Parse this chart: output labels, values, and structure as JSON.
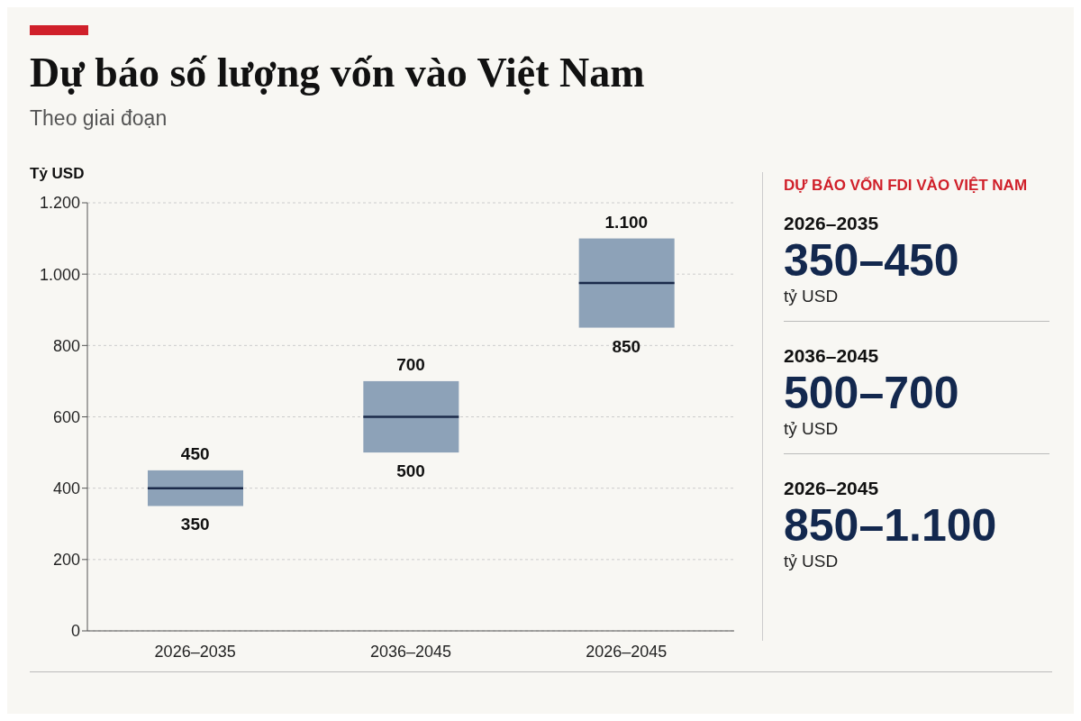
{
  "chart_data": [
    {
      "type": "box",
      "title": "Dự báo số lượng vốn vào Việt Nam",
      "subtitle": "Theo giai đoạn",
      "ylabel": "Tỷ USD",
      "categories": [
        "2026–2035",
        "2036–2045",
        "2026–2045"
      ],
      "color": "#8da2b8",
      "boxes": [
        {
          "low": 350,
          "q1": 350,
          "median": 400,
          "q3": 450,
          "high": 450
        },
        {
          "low": 500,
          "q1": 500,
          "median": 600,
          "q3": 700,
          "high": 700
        },
        {
          "low": 850,
          "q1": 850,
          "median": 975,
          "q3": 1100,
          "high": 1100
        }
      ],
      "ylim": [
        0,
        1200
      ],
      "yticks": [
        0,
        200,
        400,
        600,
        800,
        {
          "value": 1000,
          "label": "1.000"
        },
        {
          "value": 1200,
          "label": "1.200"
        }
      ],
      "grid": "y",
      "annotations": [
        {
          "text": "450",
          "x": "2026–2035",
          "y": 450
        },
        {
          "text": "350",
          "x": "2026–2035",
          "y": 350
        },
        {
          "text": "700",
          "x": "2036–2045",
          "y": 700
        },
        {
          "text": "500",
          "x": "2036–2045",
          "y": 500
        },
        {
          "text": "1.100",
          "x": "2026–2045",
          "y": 1100
        },
        {
          "text": "850",
          "x": "2026–2045",
          "y": 850
        }
      ]
    },
    {
      "type": "other",
      "title": "DỰ BÁO VỐN FDI VÀO VIỆT NAM",
      "annotations": [
        "2026–2035",
        "350–450",
        "tỷ USD",
        "2036–2045",
        "500–700",
        "tỷ USD",
        "2026–2045",
        "850–1.100",
        "tỷ USD"
      ]
    }
  ]
}
